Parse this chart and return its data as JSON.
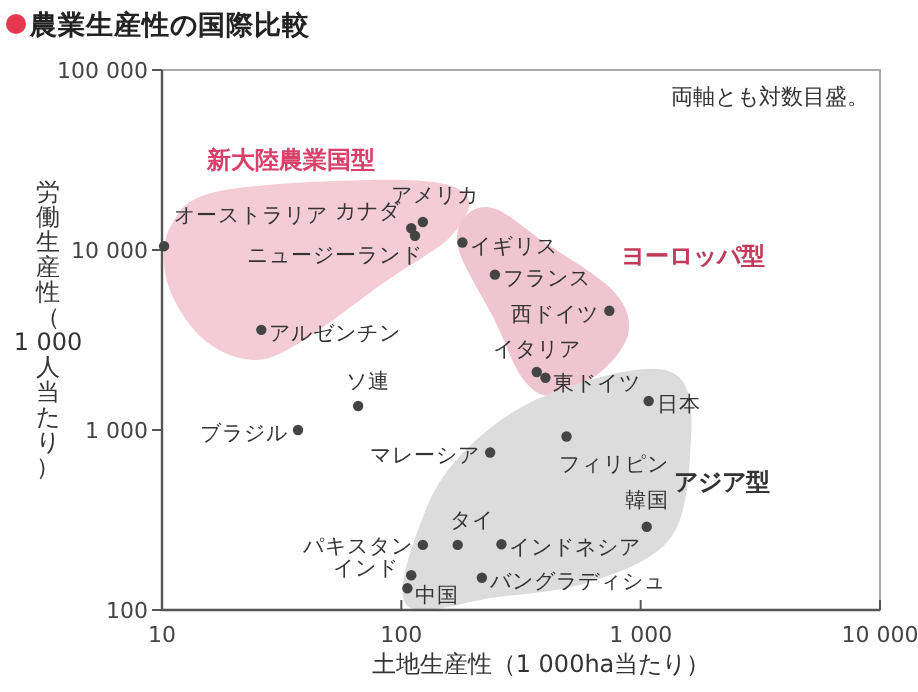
{
  "chart_data": {
    "type": "scatter",
    "title": "農業生産性の国際比較",
    "xlabel": "土地生産性（1 000ha当たり）",
    "ylabel": "労働生産性（1 000人当たり）",
    "log": "xy",
    "marker": "circle",
    "legend": false,
    "grid": false,
    "xlim": [
      10,
      10000
    ],
    "ylim": [
      100,
      100000
    ],
    "xticks": [
      10,
      100,
      {
        "value": 1000,
        "label": "1 000"
      },
      {
        "value": 10000,
        "label": "10 000"
      }
    ],
    "yticks": [
      100,
      {
        "value": 1000,
        "label": "1 000"
      },
      {
        "value": 10000,
        "label": "10 000"
      },
      {
        "value": 100000,
        "label": "100 000"
      }
    ],
    "series": [
      {
        "name": "オーストラリア",
        "color": "#444444",
        "x": [
          10.2
        ],
        "values": [
          10500
        ]
      },
      {
        "name": "アメリカ",
        "color": "#444444",
        "x": [
          123
        ],
        "values": [
          14300
        ]
      },
      {
        "name": "カナダ",
        "color": "#444444",
        "x": [
          110
        ],
        "values": [
          13200
        ]
      },
      {
        "name": "ニュージーランド",
        "color": "#444444",
        "x": [
          114
        ],
        "values": [
          12000
        ]
      },
      {
        "name": "アルゼンチン",
        "color": "#444444",
        "x": [
          26
        ],
        "values": [
          3600
        ]
      },
      {
        "name": "ソ連",
        "color": "#444444",
        "x": [
          66
        ],
        "values": [
          1360
        ]
      },
      {
        "name": "ブラジル",
        "color": "#444444",
        "x": [
          37
        ],
        "values": [
          1000
        ]
      },
      {
        "name": "イギリス",
        "color": "#444444",
        "x": [
          180
        ],
        "values": [
          11000
        ]
      },
      {
        "name": "フランス",
        "color": "#444444",
        "x": [
          246
        ],
        "values": [
          7300
        ]
      },
      {
        "name": "西ドイツ",
        "color": "#444444",
        "x": [
          740
        ],
        "values": [
          4600
        ]
      },
      {
        "name": "イタリア",
        "color": "#444444",
        "x": [
          368
        ],
        "values": [
          2100
        ]
      },
      {
        "name": "東ドイツ",
        "color": "#444444",
        "x": [
          400
        ],
        "values": [
          1950
        ]
      },
      {
        "name": "日本",
        "color": "#444444",
        "x": [
          1080
        ],
        "values": [
          1450
        ]
      },
      {
        "name": "フィリピン",
        "color": "#444444",
        "x": [
          490
        ],
        "values": [
          920
        ]
      },
      {
        "name": "マレーシア",
        "color": "#444444",
        "x": [
          235
        ],
        "values": [
          750
        ]
      },
      {
        "name": "韓国",
        "color": "#444444",
        "x": [
          1060
        ],
        "values": [
          290
        ]
      },
      {
        "name": "タイ",
        "color": "#444444",
        "x": [
          172
        ],
        "values": [
          230
        ]
      },
      {
        "name": "インドネシア",
        "color": "#444444",
        "x": [
          262
        ],
        "values": [
          232
        ]
      },
      {
        "name": "バングラディシュ",
        "color": "#444444",
        "x": [
          217
        ],
        "values": [
          151
        ]
      },
      {
        "name": "パキスタン",
        "color": "#444444",
        "x": [
          123
        ],
        "values": [
          230
        ]
      },
      {
        "name": "インド",
        "color": "#444444",
        "x": [
          110
        ],
        "values": [
          156
        ]
      },
      {
        "name": "中国",
        "color": "#444444",
        "x": [
          106
        ],
        "values": [
          132
        ]
      }
    ],
    "annotations": [
      "新大陸農業国型",
      "ヨーロッパ型",
      "アジア型",
      "両軸とも対数目盛。"
    ]
  }
}
